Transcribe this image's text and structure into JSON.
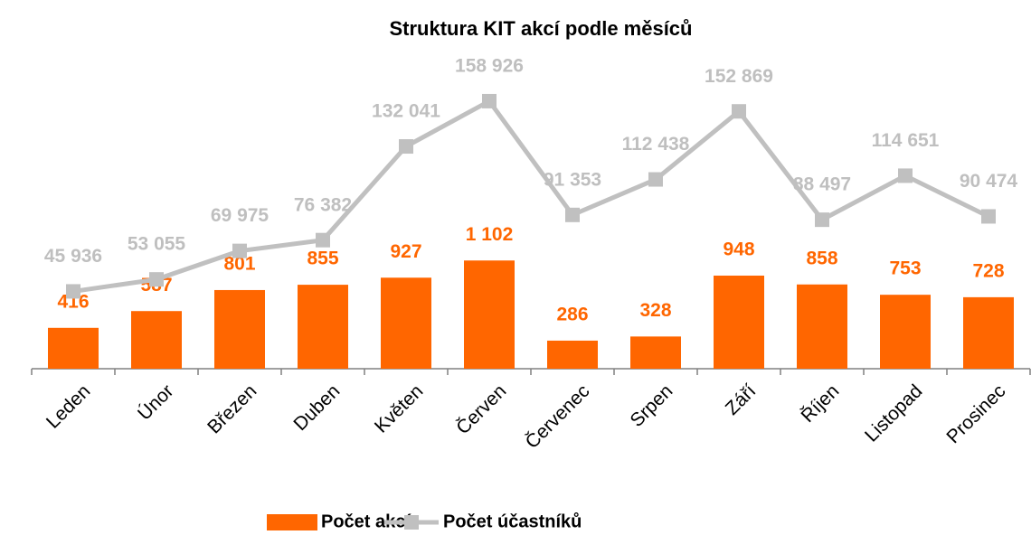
{
  "chart_data": {
    "type": "bar_line",
    "title": "Struktura KIT akcí podle měsíců",
    "categories": [
      "Leden",
      "Únor",
      "Březen",
      "Duben",
      "Květen",
      "Červen",
      "Červenec",
      "Srpen",
      "Září",
      "Říjen",
      "Listopad",
      "Prosinec"
    ],
    "series": [
      {
        "name": "Počet akcí",
        "type": "bar",
        "color": "#ff6600",
        "values": [
          416,
          587,
          801,
          855,
          927,
          1102,
          286,
          328,
          948,
          858,
          753,
          728
        ],
        "value_labels": [
          "416",
          "587",
          "801",
          "855",
          "927",
          "1 102",
          "286",
          "328",
          "948",
          "858",
          "753",
          "728"
        ]
      },
      {
        "name": "Počet účastníků",
        "type": "line",
        "axis": "y2",
        "color": "#c0c0c0",
        "values": [
          45936,
          53055,
          69975,
          76382,
          132041,
          158926,
          91353,
          112438,
          152869,
          88497,
          114651,
          90474
        ],
        "value_labels": [
          "45 936",
          "53 055",
          "69 975",
          "76 382",
          "132 041",
          "158 926",
          "91 353",
          "112 438",
          "152 869",
          "88 497",
          "114 651",
          "90 474"
        ]
      }
    ],
    "ylim": [
      0,
      3000
    ],
    "y2lim": [
      0,
      175000
    ],
    "legend": "bottom"
  }
}
